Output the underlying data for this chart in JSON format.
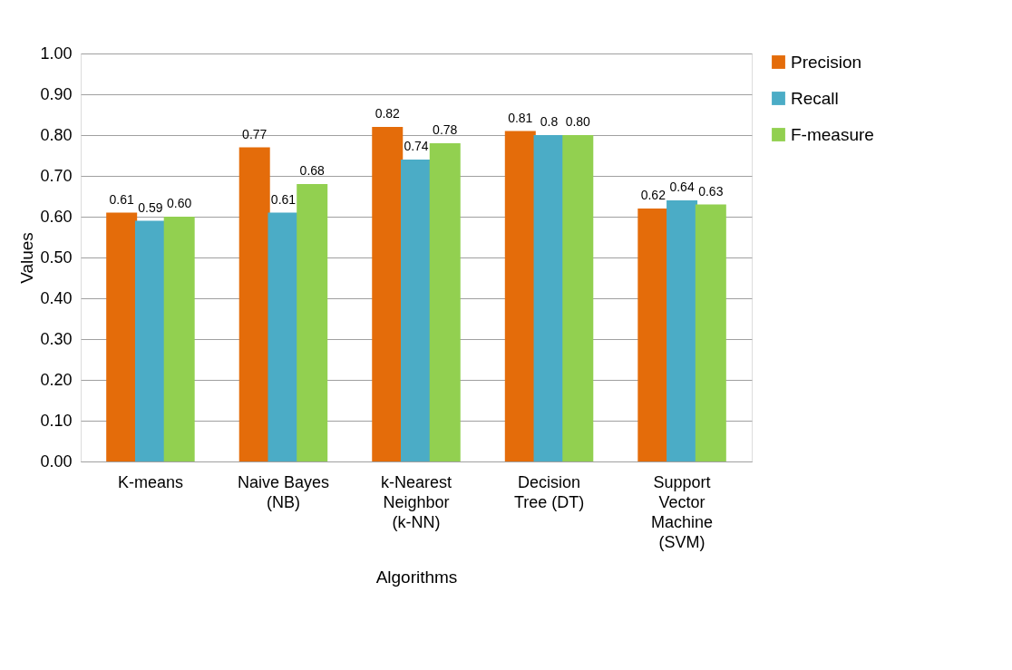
{
  "chart_data": {
    "type": "bar",
    "xlabel": "Algorithms",
    "ylabel": "Values",
    "categories": [
      "K-means",
      "Naive Bayes (NB)",
      "k-Nearest Neighbor (k-NN)",
      "Decision Tree (DT)",
      "Support Vector Machine (SVM)"
    ],
    "series": [
      {
        "name": "Precision",
        "color": "#e46c0a",
        "values": [
          0.61,
          0.77,
          0.82,
          0.81,
          0.62
        ],
        "value_labels": [
          "0.61",
          "0.77",
          "0.82",
          "0.81",
          "0.62"
        ]
      },
      {
        "name": "Recall",
        "color": "#4bacc6",
        "values": [
          0.59,
          0.61,
          0.74,
          0.8,
          0.64
        ],
        "value_labels": [
          "0.59",
          "0.61",
          "0.74",
          "0.8",
          "0.64"
        ]
      },
      {
        "name": "F-measure",
        "color": "#92d050",
        "values": [
          0.6,
          0.68,
          0.78,
          0.8,
          0.63
        ],
        "value_labels": [
          "0.60",
          "0.68",
          "0.78",
          "0.80",
          "0.63"
        ]
      }
    ],
    "ylim": [
      0,
      1
    ],
    "yticks": [
      {
        "value": 0,
        "label": "0.00"
      },
      {
        "value": 0.1,
        "label": "0.10"
      },
      {
        "value": 0.2,
        "label": "0.20"
      },
      {
        "value": 0.3,
        "label": "0.30"
      },
      {
        "value": 0.4,
        "label": "0.40"
      },
      {
        "value": 0.5,
        "label": "0.50"
      },
      {
        "value": 0.6,
        "label": "0.60"
      },
      {
        "value": 0.7,
        "label": "0.70"
      },
      {
        "value": 0.8,
        "label": "0.80"
      },
      {
        "value": 0.9,
        "label": "0.90"
      },
      {
        "value": 1,
        "label": "1.00"
      }
    ],
    "grid": "y",
    "legend": "right"
  }
}
